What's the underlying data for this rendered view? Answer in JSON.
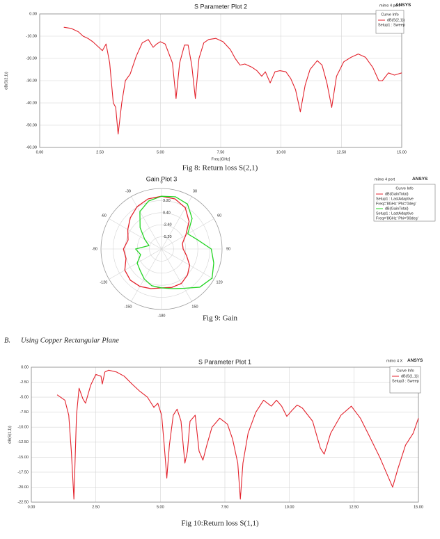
{
  "chart_data": [
    {
      "type": "line",
      "title": "S Parameter Plot 2",
      "project": "mimo 4 port",
      "brand": "ANSYS",
      "legend_title": "Curve Info",
      "x_label": "Freq [GHz]",
      "y_label": "dB(S(2,1))",
      "xlim": [
        0,
        15
      ],
      "ylim": [
        -60,
        0
      ],
      "xticks": [
        {
          "value": 0,
          "label": "0.00"
        },
        {
          "value": 2.5,
          "label": "2.50"
        },
        {
          "value": 5,
          "label": "5.00"
        },
        {
          "value": 7.5,
          "label": "7.50"
        },
        {
          "value": 10,
          "label": "10.00"
        },
        {
          "value": 12.5,
          "label": "12.50"
        },
        {
          "value": 15,
          "label": "15.00"
        }
      ],
      "yticks": [
        {
          "value": 0,
          "label": "0.00"
        },
        {
          "value": -10,
          "label": "-10.00"
        },
        {
          "value": -20,
          "label": "-20.00"
        },
        {
          "value": -30,
          "label": "-30.00"
        },
        {
          "value": -40,
          "label": "-40.00"
        },
        {
          "value": -50,
          "label": "-50.00"
        },
        {
          "value": -60,
          "label": "-60.00"
        }
      ],
      "grid": true,
      "x": [
        1.0,
        1.3,
        1.6,
        1.8,
        2.0,
        2.2,
        2.5,
        2.6,
        2.75,
        2.9,
        3.05,
        3.15,
        3.25,
        3.4,
        3.55,
        3.75,
        4.0,
        4.25,
        4.5,
        4.7,
        4.85,
        5.0,
        5.2,
        5.5,
        5.65,
        5.8,
        6.0,
        6.15,
        6.3,
        6.45,
        6.6,
        6.8,
        7.0,
        7.3,
        7.6,
        7.9,
        8.1,
        8.3,
        8.5,
        8.8,
        9.0,
        9.2,
        9.35,
        9.55,
        9.75,
        9.95,
        10.2,
        10.4,
        10.6,
        10.8,
        11.0,
        11.2,
        11.5,
        11.7,
        11.9,
        12.1,
        12.3,
        12.6,
        12.9,
        13.2,
        13.5,
        13.8,
        14.05,
        14.2,
        14.45,
        14.7,
        14.85,
        15.0
      ],
      "series": [
        {
          "name": "dB(S(2,1))",
          "setup": "Setup1 : Sweep",
          "color": "#e3222c",
          "values": [
            -6,
            -6.5,
            -8,
            -10,
            -11,
            -12.5,
            -15.5,
            -16.5,
            -13.5,
            -22,
            -40,
            -42,
            -54,
            -40,
            -30,
            -27,
            -19,
            -13,
            -11.5,
            -15,
            -13.5,
            -12.5,
            -13.5,
            -22,
            -38,
            -22,
            -14,
            -14,
            -23,
            -38,
            -20,
            -13,
            -11.5,
            -11,
            -12.5,
            -16,
            -20,
            -23,
            -22.5,
            -24,
            -25.5,
            -28,
            -26,
            -31,
            -26,
            -25.5,
            -26,
            -29,
            -34,
            -44,
            -32,
            -25,
            -21,
            -23,
            -31,
            -42,
            -28,
            -21.5,
            -19.5,
            -18,
            -19.5,
            -24,
            -30,
            -30,
            -26.5,
            -27.5,
            -27,
            -26.5
          ]
        }
      ]
    },
    {
      "type": "polar",
      "title": "Gain Plot 3",
      "project": "mimo 4 port",
      "brand": "ANSYS",
      "legend_title": "Curve Info",
      "rlim": [
        -8,
        6
      ],
      "rticks": [
        {
          "value": 3.2,
          "label": "3.20"
        },
        {
          "value": 0.4,
          "label": "0.40"
        },
        {
          "value": -2.4,
          "label": "-2.40"
        },
        {
          "value": -5.2,
          "label": "-5.20"
        }
      ],
      "thetaticks": [
        0,
        30,
        60,
        90,
        120,
        150,
        -180,
        -150,
        -120,
        -90,
        -60,
        -30
      ],
      "theta": [
        -180,
        -165,
        -150,
        -135,
        -120,
        -105,
        -90,
        -75,
        -60,
        -45,
        -30,
        -15,
        0,
        15,
        30,
        45,
        60,
        75,
        90,
        105,
        120,
        135,
        150,
        165
      ],
      "series": [
        {
          "name": "dB(GainTotal)",
          "setup": "Setup1 : LastAdaptive",
          "variation": "Freq='8GHz' Phi='0deg'",
          "color": "#e3222c",
          "values": [
            1.0,
            1.5,
            2.0,
            2.2,
            1.8,
            0.5,
            0.8,
            0.0,
            1.0,
            2.2,
            3.3,
            4.0,
            4.2,
            4.0,
            3.0,
            1.0,
            -1.5,
            -3.0,
            -3.0,
            -2.0,
            -0.5,
            0.5,
            1.2,
            1.2
          ]
        },
        {
          "name": "dB(GainTotal)",
          "setup": "Setup1 : LastAdaptive",
          "variation": "Freq='8GHz' Phi='90deg'",
          "color": "#22d422",
          "values": [
            1.0,
            0.8,
            0.0,
            -1.0,
            -1.5,
            -3.0,
            -2.0,
            -5.0,
            -3.5,
            -1.0,
            2.0,
            3.5,
            4.2,
            4.5,
            4.0,
            2.0,
            -1.0,
            0.5,
            3.5,
            4.5,
            5.5,
            4.5,
            2.5,
            1.5
          ]
        }
      ]
    },
    {
      "type": "line",
      "title": "S Parameter Plot 1",
      "project": "mimo 4 X",
      "brand": "ANSYS",
      "legend_title": "Curve Info",
      "y_label": "dB(S(1,1))",
      "xlim": [
        0,
        15
      ],
      "ylim": [
        -22.5,
        0
      ],
      "xticks": [
        {
          "value": 0,
          "label": "0.00"
        },
        {
          "value": 2.5,
          "label": "2.50"
        },
        {
          "value": 5,
          "label": "5.00"
        },
        {
          "value": 7.5,
          "label": "7.50"
        },
        {
          "value": 10,
          "label": "10.00"
        },
        {
          "value": 12.5,
          "label": "12.50"
        },
        {
          "value": 15,
          "label": "15.00"
        }
      ],
      "yticks": [
        {
          "value": 0,
          "label": "0.00"
        },
        {
          "value": -2.5,
          "label": "-2.50"
        },
        {
          "value": -5,
          "label": "-5.00"
        },
        {
          "value": -7.5,
          "label": "-7.50"
        },
        {
          "value": -10,
          "label": "-10.00"
        },
        {
          "value": -12.5,
          "label": "-12.50"
        },
        {
          "value": -15,
          "label": "-15.00"
        },
        {
          "value": -17.5,
          "label": "-17.50"
        },
        {
          "value": -20,
          "label": "-20.00"
        },
        {
          "value": -22.5,
          "label": "-22.50"
        }
      ],
      "grid": true,
      "x": [
        1.0,
        1.3,
        1.45,
        1.55,
        1.65,
        1.75,
        1.85,
        2.0,
        2.1,
        2.3,
        2.5,
        2.7,
        2.75,
        2.85,
        3.0,
        3.3,
        3.6,
        3.9,
        4.2,
        4.5,
        4.75,
        4.9,
        5.05,
        5.15,
        5.25,
        5.35,
        5.5,
        5.65,
        5.8,
        5.95,
        6.05,
        6.15,
        6.35,
        6.5,
        6.65,
        6.8,
        7.0,
        7.3,
        7.6,
        7.8,
        8.0,
        8.1,
        8.2,
        8.4,
        8.7,
        9.0,
        9.3,
        9.5,
        9.7,
        9.9,
        10.1,
        10.3,
        10.5,
        10.9,
        11.2,
        11.35,
        11.6,
        12.0,
        12.4,
        12.75,
        13.1,
        13.5,
        13.8,
        14.0,
        14.2,
        14.5,
        14.8,
        15.0
      ],
      "series": [
        {
          "name": "dB(S(1,1))",
          "setup": "Setup3 : Sweep",
          "color": "#e3222c",
          "values": [
            -4.6,
            -5.5,
            -8,
            -14,
            -22,
            -8,
            -3.5,
            -5.3,
            -6,
            -3,
            -1.2,
            -1.5,
            -2.8,
            -0.8,
            -0.5,
            -0.8,
            -1.5,
            -2.8,
            -4,
            -5,
            -6.7,
            -6,
            -8,
            -13,
            -18.5,
            -13,
            -8,
            -7,
            -9,
            -16,
            -14,
            -9,
            -8,
            -14,
            -15.5,
            -13,
            -10,
            -8.5,
            -9.5,
            -12,
            -16,
            -22,
            -16,
            -11,
            -7.5,
            -5.5,
            -6.5,
            -5.5,
            -6.5,
            -8.2,
            -7.2,
            -6.3,
            -6.8,
            -9,
            -13.5,
            -14.5,
            -11,
            -8,
            -6.5,
            -8.5,
            -11.5,
            -15,
            -18,
            -20,
            -17,
            -13,
            -11,
            -8.5
          ]
        }
      ]
    }
  ],
  "captions": [
    "Fig 8: Return loss S(2,1)",
    "Fig 9: Gain",
    "Fig 10:Return loss S(1,1)"
  ],
  "section": {
    "label": "B.",
    "title": "Using Copper Rectangular Plane"
  }
}
